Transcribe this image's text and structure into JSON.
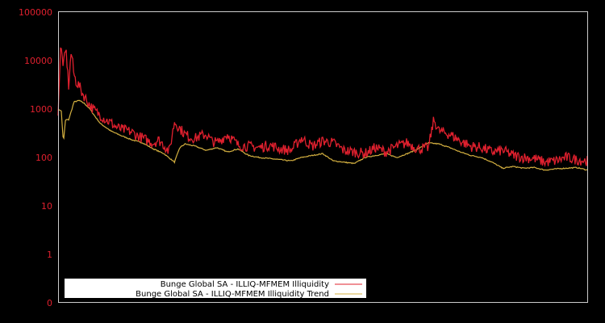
{
  "chart_data": {
    "type": "line",
    "title": "",
    "xlabel": "",
    "ylabel": "",
    "yscale": "log",
    "y_tick_labels": [
      "100000",
      "10000",
      "1000",
      "100",
      "10",
      "1",
      "0"
    ],
    "y_tick_values": [
      100000,
      10000,
      1000,
      100,
      10,
      1,
      0
    ],
    "x_tick_labels": [],
    "grid": false,
    "legend_position": "lower left",
    "colors": {
      "background": "#000000",
      "frame": "#cccccc",
      "tick_label": "#e0202e",
      "series_main": "#e0202e",
      "series_trend": "#d4b040"
    },
    "series": [
      {
        "name": "Bunge Global SA - ILLIQ-MFMEM Illiquidity",
        "color": "#e0202e",
        "x_frac": [
          0.0,
          0.005,
          0.01,
          0.015,
          0.02,
          0.025,
          0.03,
          0.035,
          0.04,
          0.045,
          0.05,
          0.06,
          0.07,
          0.08,
          0.09,
          0.1,
          0.11,
          0.12,
          0.13,
          0.14,
          0.15,
          0.16,
          0.17,
          0.18,
          0.19,
          0.2,
          0.21,
          0.22,
          0.23,
          0.24,
          0.25,
          0.26,
          0.27,
          0.28,
          0.29,
          0.3,
          0.32,
          0.34,
          0.36,
          0.38,
          0.4,
          0.42,
          0.44,
          0.46,
          0.48,
          0.5,
          0.52,
          0.54,
          0.56,
          0.58,
          0.6,
          0.62,
          0.64,
          0.66,
          0.68,
          0.7,
          0.71,
          0.72,
          0.74,
          0.76,
          0.78,
          0.8,
          0.82,
          0.84,
          0.86,
          0.88,
          0.9,
          0.92,
          0.94,
          0.96,
          0.98,
          1.0
        ],
        "values": [
          900,
          20000,
          8000,
          17000,
          3000,
          16000,
          5000,
          3500,
          3000,
          2200,
          1800,
          1200,
          900,
          750,
          600,
          520,
          420,
          380,
          360,
          330,
          280,
          250,
          220,
          200,
          230,
          180,
          130,
          550,
          400,
          300,
          260,
          250,
          280,
          300,
          220,
          200,
          300,
          180,
          170,
          160,
          180,
          150,
          140,
          250,
          170,
          220,
          200,
          140,
          130,
          120,
          160,
          130,
          170,
          200,
          150,
          160,
          600,
          350,
          300,
          220,
          170,
          160,
          130,
          140,
          110,
          100,
          95,
          80,
          85,
          100,
          90,
          85
        ]
      },
      {
        "name": "Bunge Global SA - ILLIQ-MFMEM Illiquidity Trend",
        "color": "#d4b040",
        "x_frac": [
          0.0,
          0.006,
          0.01,
          0.014,
          0.02,
          0.025,
          0.03,
          0.04,
          0.05,
          0.06,
          0.07,
          0.08,
          0.09,
          0.1,
          0.12,
          0.14,
          0.16,
          0.18,
          0.2,
          0.22,
          0.23,
          0.24,
          0.26,
          0.28,
          0.3,
          0.32,
          0.34,
          0.36,
          0.38,
          0.4,
          0.42,
          0.44,
          0.46,
          0.48,
          0.5,
          0.52,
          0.54,
          0.56,
          0.58,
          0.6,
          0.62,
          0.64,
          0.66,
          0.68,
          0.7,
          0.72,
          0.74,
          0.76,
          0.78,
          0.8,
          0.82,
          0.84,
          0.86,
          0.88,
          0.9,
          0.92,
          0.94,
          0.96,
          0.98,
          1.0
        ],
        "values": [
          950,
          950,
          200,
          600,
          600,
          900,
          1400,
          1500,
          1300,
          1000,
          700,
          500,
          420,
          350,
          280,
          230,
          200,
          150,
          120,
          80,
          160,
          190,
          170,
          140,
          160,
          130,
          150,
          110,
          100,
          95,
          90,
          85,
          100,
          110,
          120,
          85,
          80,
          75,
          100,
          110,
          120,
          100,
          120,
          150,
          200,
          190,
          160,
          130,
          110,
          100,
          80,
          60,
          65,
          60,
          62,
          55,
          58,
          60,
          62,
          55
        ]
      }
    ]
  },
  "legend": {
    "items": [
      {
        "label": "Bunge Global SA - ILLIQ-MFMEM Illiquidity",
        "color": "#e0202e"
      },
      {
        "label": "Bunge Global SA - ILLIQ-MFMEM Illiquidity Trend",
        "color": "#d4b040"
      }
    ]
  }
}
